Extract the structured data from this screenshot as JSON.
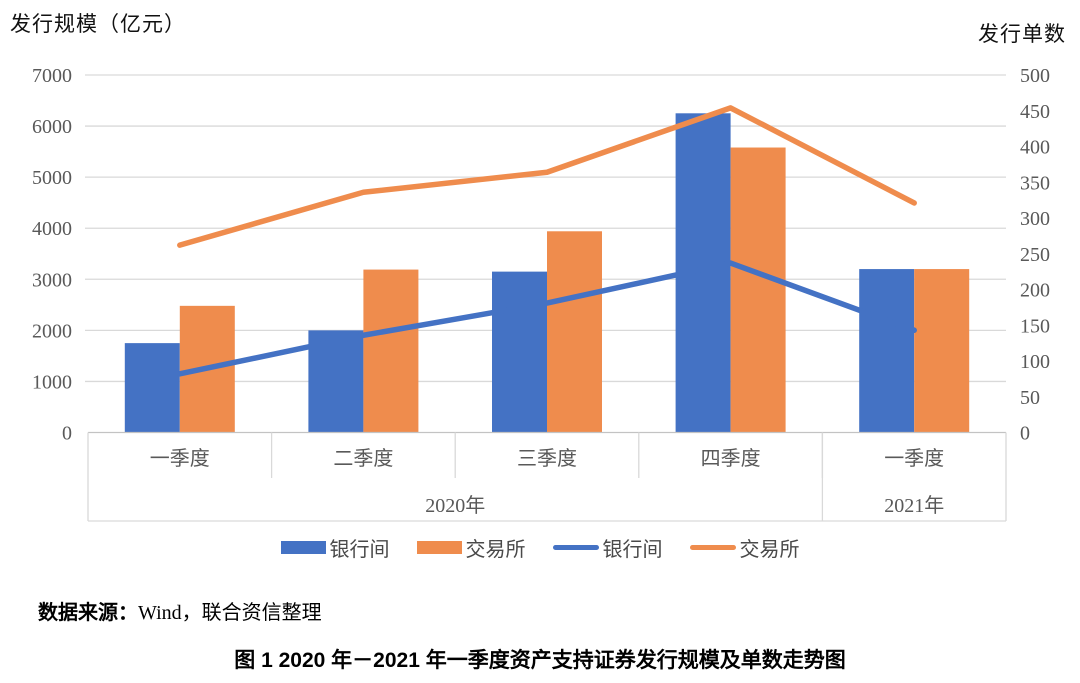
{
  "chart_data": {
    "type": "combo-bar-line",
    "categories": [
      "一季度",
      "二季度",
      "三季度",
      "四季度",
      "一季度"
    ],
    "year_groups": [
      {
        "label": "2020年",
        "span": 4
      },
      {
        "label": "2021年",
        "span": 1
      }
    ],
    "left_axis": {
      "title": "发行规模（亿元）",
      "min": 0,
      "max": 7000,
      "step": 1000
    },
    "right_axis": {
      "title": "发行单数",
      "min": 0,
      "max": 500,
      "step": 50
    },
    "bar_series": [
      {
        "name": "银行间",
        "axis": "left",
        "color": "#4472C4",
        "values": [
          1750,
          2000,
          3150,
          6250,
          3200
        ]
      },
      {
        "name": "交易所",
        "axis": "left",
        "color": "#EF8C4D",
        "values": [
          2480,
          3190,
          3940,
          5580,
          3200
        ]
      }
    ],
    "line_series": [
      {
        "name": "银行间",
        "axis": "right",
        "color": "#4472C4",
        "values": [
          82,
          136,
          181,
          237,
          143
        ]
      },
      {
        "name": "交易所",
        "axis": "right",
        "color": "#EF8C4D",
        "values": [
          262,
          336,
          364,
          454,
          321
        ]
      }
    ],
    "legend_position": "bottom",
    "grid": "horizontal",
    "grid_color": "#D9D9D9",
    "tick_color": "#595959"
  },
  "source_note": {
    "prefix": "数据来源：",
    "text": "Wind，联合资信整理"
  },
  "caption": "图 1 2020 年－2021 年一季度资产支持证券发行规模及单数走势图"
}
